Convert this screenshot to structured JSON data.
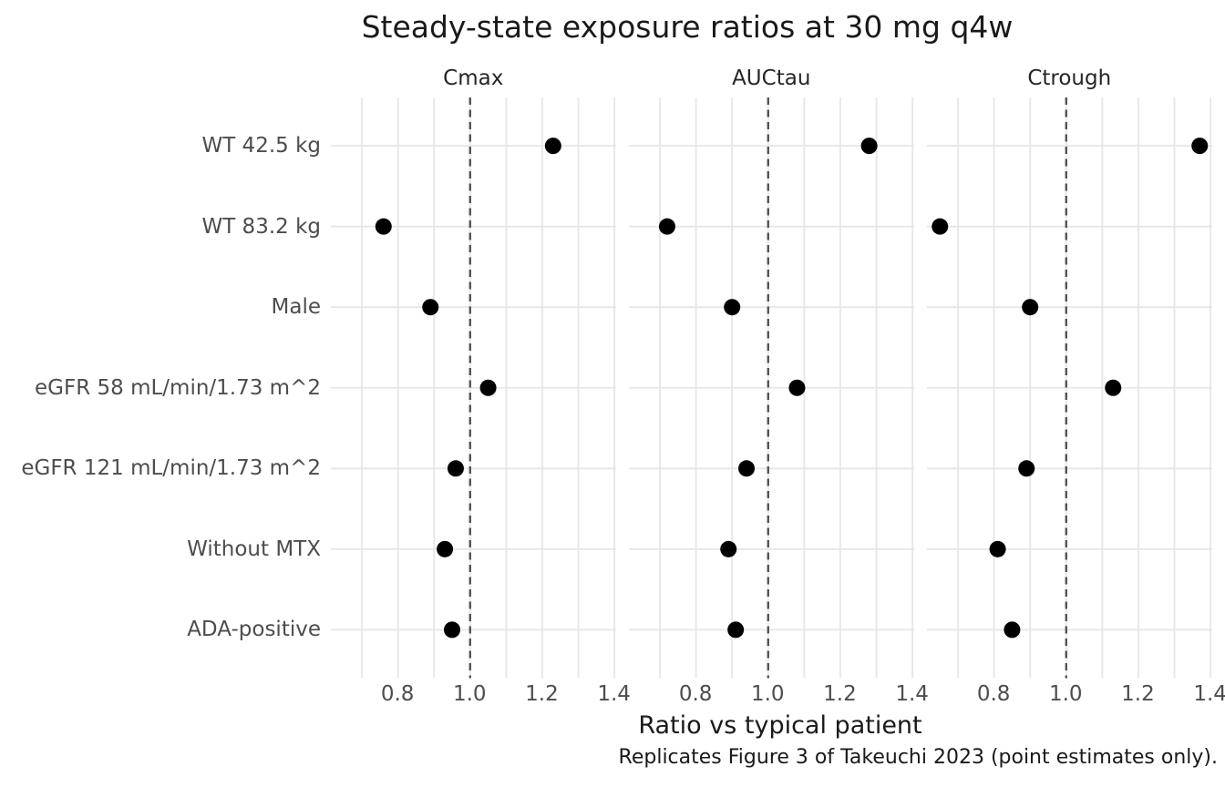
{
  "title": "Steady-state exposure ratios at 30 mg q4w",
  "xlabel": "Ratio vs typical patient",
  "caption": "Replicates Figure 3 of Takeuchi 2023 (point estimates only).",
  "chart_data": {
    "type": "scatter",
    "subtype": "faceted-dot-plot",
    "facets": [
      "Cmax",
      "AUCtau",
      "Ctrough"
    ],
    "categories": [
      "WT 42.5 kg",
      "WT 83.2 kg",
      "Male",
      "eGFR 58 mL/min/1.73 m^2",
      "eGFR 121 mL/min/1.73 m^2",
      "Without MTX",
      "ADA-positive"
    ],
    "series": [
      {
        "name": "Cmax",
        "values": [
          1.23,
          0.76,
          0.89,
          1.05,
          0.96,
          0.93,
          0.95
        ]
      },
      {
        "name": "AUCtau",
        "values": [
          1.28,
          0.72,
          0.9,
          1.08,
          0.94,
          0.89,
          0.91
        ]
      },
      {
        "name": "Ctrough",
        "values": [
          1.37,
          0.65,
          0.9,
          1.13,
          0.89,
          0.81,
          0.85
        ]
      }
    ],
    "x_ticks": [
      "0.8",
      "1.0",
      "1.2",
      "1.4"
    ],
    "x_tick_values": [
      0.8,
      1.0,
      1.2,
      1.4
    ],
    "x_gridline_step": 0.1,
    "x_gridline_start": 0.7,
    "x_gridline_end": 1.4,
    "x_range": [
      0.614,
      1.406
    ],
    "reference_line": 1.0,
    "grid": true,
    "legend": "none"
  },
  "colors": {
    "background": "#ffffff",
    "point": "#000000",
    "grid": "#e6e6e6",
    "reference_line": "#545454",
    "axis_text": "#4d4d4d",
    "strip_text": "#262626",
    "title_text": "#1a1a1a"
  }
}
